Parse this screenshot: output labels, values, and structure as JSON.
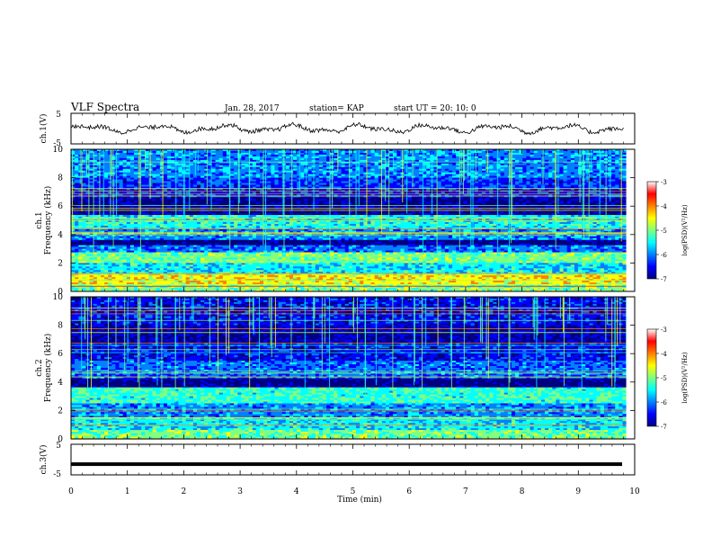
{
  "header": {
    "title": "VLF Spectra",
    "date": "Jan. 28, 2017",
    "station": "station= KAP",
    "start": "start  UT =   20: 10: 0"
  },
  "colormap": [
    "#000080",
    "#0000ff",
    "#0080ff",
    "#00ffff",
    "#80ff80",
    "#ffff00",
    "#ff8000",
    "#ff0000",
    "#ffffff"
  ],
  "chart_data": [
    {
      "type": "line",
      "ylabel": "ch.1(V)",
      "ylim": [
        -5,
        5
      ],
      "yticks": [
        "5",
        "-5"
      ],
      "xlim": [
        0,
        10
      ],
      "description": "noisy waveform around 0 V, amplitude roughly -2 to +2"
    },
    {
      "type": "heatmap",
      "ylabel": "ch.1\nFrequency (kHz)",
      "ylabel_lines": [
        "ch.1",
        "Frequency (kHz)"
      ],
      "ylim": [
        0,
        10
      ],
      "yticks": [
        "0",
        "2",
        "4",
        "6",
        "8",
        "10"
      ],
      "xlim": [
        0,
        9.85
      ],
      "colorbar": {
        "label": "log(PSD)(V²/Hz)",
        "range": [
          -7,
          -3
        ],
        "ticks": [
          "-3",
          "-4",
          "-5",
          "-6",
          "-7"
        ]
      },
      "bands_khz": [
        {
          "from": 0.0,
          "to": 0.5,
          "level": 0.55
        },
        {
          "from": 0.5,
          "to": 1.2,
          "level": 0.7
        },
        {
          "from": 1.2,
          "to": 2.0,
          "level": 0.42
        },
        {
          "from": 2.0,
          "to": 2.7,
          "level": 0.55
        },
        {
          "from": 2.7,
          "to": 3.2,
          "level": 0.3
        },
        {
          "from": 3.2,
          "to": 3.6,
          "level": 0.05
        },
        {
          "from": 3.6,
          "to": 4.4,
          "level": 0.32
        },
        {
          "from": 4.4,
          "to": 5.4,
          "level": 0.45
        },
        {
          "from": 5.4,
          "to": 6.6,
          "level": 0.08
        },
        {
          "from": 6.6,
          "to": 8.0,
          "level": 0.22
        },
        {
          "from": 8.0,
          "to": 10.0,
          "level": 0.32
        }
      ]
    },
    {
      "type": "heatmap",
      "ylabel_lines": [
        "ch.2",
        "Frequency (kHz)"
      ],
      "ylim": [
        0,
        10
      ],
      "yticks": [
        "0",
        "2",
        "4",
        "6",
        "8",
        "10"
      ],
      "xlim": [
        0,
        9.85
      ],
      "colorbar": {
        "label": "log(PSD)(V²/Hz)",
        "range": [
          -7,
          -3
        ],
        "ticks": [
          "-3",
          "-4",
          "-5",
          "-6",
          "-7"
        ]
      },
      "bands_khz": [
        {
          "from": 0.0,
          "to": 0.6,
          "level": 0.55
        },
        {
          "from": 0.6,
          "to": 1.5,
          "level": 0.42
        },
        {
          "from": 1.5,
          "to": 2.5,
          "level": 0.32
        },
        {
          "from": 2.5,
          "to": 3.6,
          "level": 0.48
        },
        {
          "from": 3.6,
          "to": 4.3,
          "level": 0.05
        },
        {
          "from": 4.3,
          "to": 5.5,
          "level": 0.28
        },
        {
          "from": 5.5,
          "to": 6.8,
          "level": 0.18
        },
        {
          "from": 6.8,
          "to": 8.0,
          "level": 0.1
        },
        {
          "from": 8.0,
          "to": 10.0,
          "level": 0.18
        }
      ]
    },
    {
      "type": "line",
      "ylabel": "ch.3(V)",
      "ylim": [
        -5,
        5
      ],
      "yticks": [
        "5",
        "-5"
      ],
      "value": -1.5,
      "xlim": [
        0,
        10
      ],
      "xlabel": "Time (min)",
      "xticks": [
        "0",
        "1",
        "2",
        "3",
        "4",
        "5",
        "6",
        "7",
        "8",
        "9",
        "10"
      ]
    }
  ]
}
